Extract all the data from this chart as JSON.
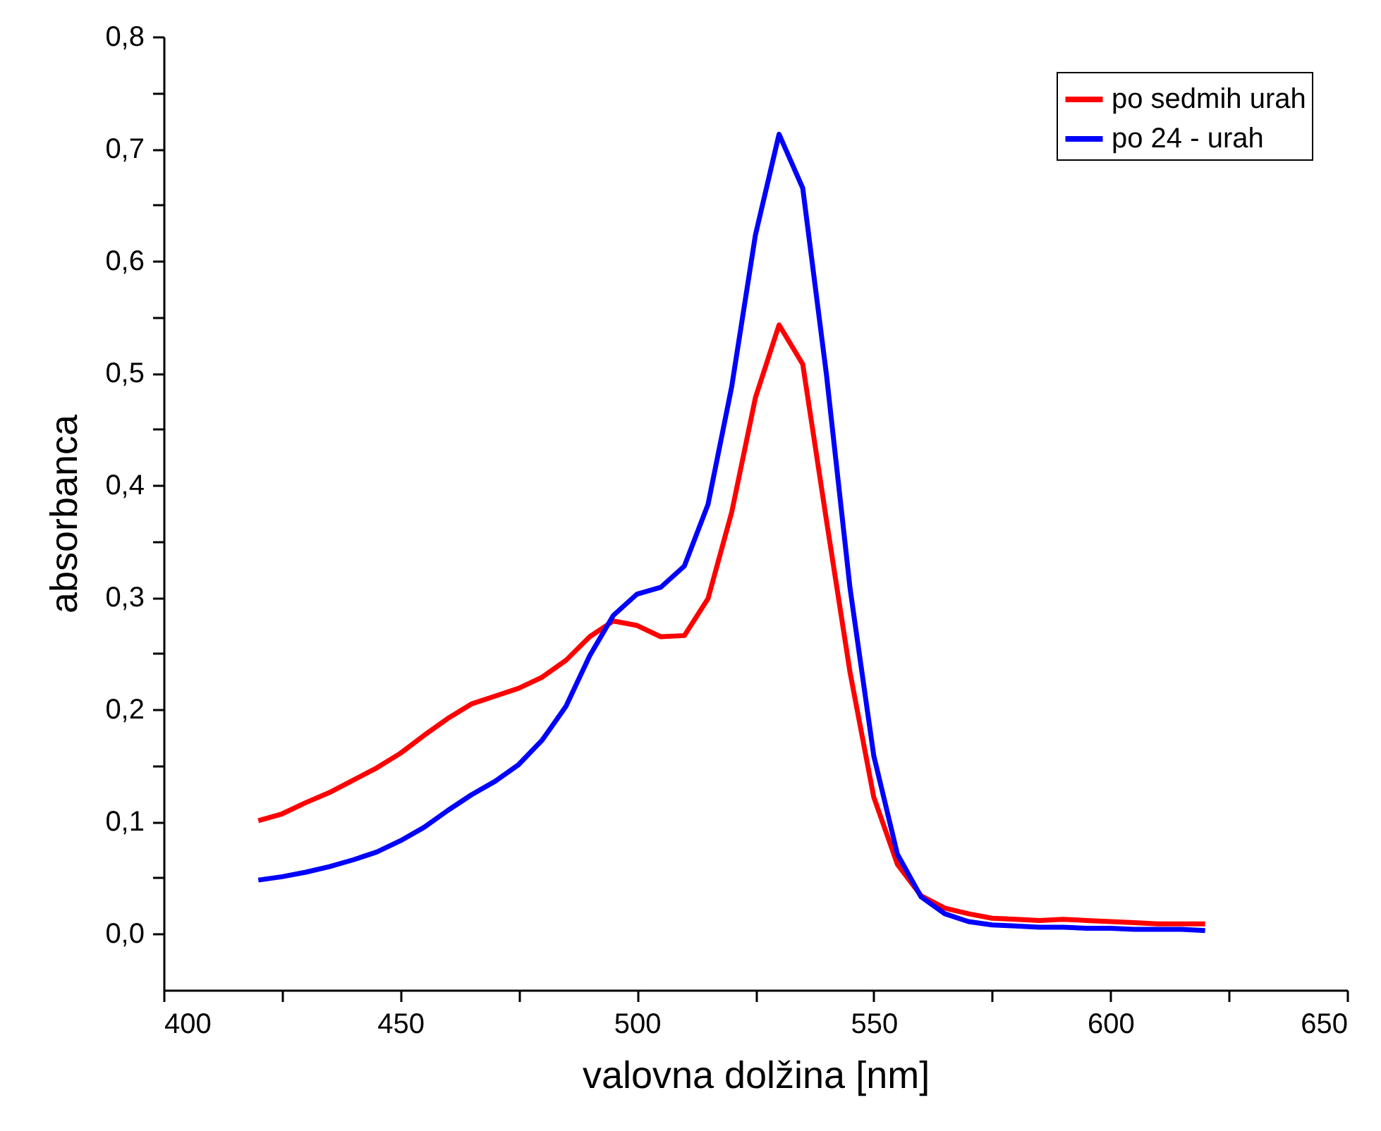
{
  "chart_data": {
    "type": "line",
    "xlabel": "valovna dolžina [nm]",
    "ylabel": "absorbanca",
    "xlim": [
      400,
      650
    ],
    "ylim": [
      -0.05,
      0.8
    ],
    "xticks": [
      400,
      {
        "value": 425,
        "label": null
      },
      450,
      {
        "value": 475,
        "label": null
      },
      500,
      {
        "value": 525,
        "label": null
      },
      550,
      {
        "value": 575,
        "label": null
      },
      600,
      {
        "value": 625,
        "label": null
      },
      650
    ],
    "yticks": [
      {
        "value": 0,
        "label": "0,0"
      },
      {
        "value": 0.05,
        "label": null
      },
      {
        "value": 0.1,
        "label": "0,1"
      },
      {
        "value": 0.15,
        "label": null
      },
      {
        "value": 0.2,
        "label": "0,2"
      },
      {
        "value": 0.25,
        "label": null
      },
      {
        "value": 0.3,
        "label": "0,3"
      },
      {
        "value": 0.35,
        "label": null
      },
      {
        "value": 0.4,
        "label": "0,4"
      },
      {
        "value": 0.45,
        "label": null
      },
      {
        "value": 0.5,
        "label": "0,5"
      },
      {
        "value": 0.55,
        "label": null
      },
      {
        "value": 0.6,
        "label": "0,6"
      },
      {
        "value": 0.65,
        "label": null
      },
      {
        "value": 0.7,
        "label": "0,7"
      },
      {
        "value": 0.75,
        "label": null
      },
      {
        "value": 0.8,
        "label": "0,8"
      }
    ],
    "x": [
      420,
      425,
      430,
      435,
      440,
      445,
      450,
      455,
      460,
      465,
      470,
      475,
      480,
      485,
      490,
      495,
      500,
      505,
      510,
      515,
      520,
      525,
      530,
      535,
      540,
      545,
      550,
      555,
      560,
      565,
      570,
      575,
      580,
      585,
      590,
      595,
      600,
      605,
      610,
      615,
      620
    ],
    "series": [
      {
        "name": "po sedmih urah",
        "color": "#ff0000",
        "values": [
          0.101,
          0.107,
          0.117,
          0.126,
          0.137,
          0.148,
          0.161,
          0.177,
          0.192,
          0.205,
          0.212,
          0.219,
          0.229,
          0.244,
          0.265,
          0.279,
          0.275,
          0.265,
          0.266,
          0.299,
          0.376,
          0.478,
          0.543,
          0.508,
          0.369,
          0.233,
          0.122,
          0.062,
          0.034,
          0.023,
          0.018,
          0.014,
          0.013,
          0.012,
          0.013,
          0.012,
          0.011,
          0.01,
          0.009,
          0.009,
          0.009
        ]
      },
      {
        "name": "po 24 - urah",
        "color": "#0000ff",
        "values": [
          0.048,
          0.051,
          0.055,
          0.06,
          0.066,
          0.073,
          0.083,
          0.095,
          0.11,
          0.124,
          0.136,
          0.151,
          0.173,
          0.203,
          0.248,
          0.284,
          0.303,
          0.309,
          0.328,
          0.383,
          0.488,
          0.623,
          0.713,
          0.665,
          0.499,
          0.308,
          0.159,
          0.071,
          0.033,
          0.018,
          0.011,
          0.008,
          0.007,
          0.006,
          0.006,
          0.005,
          0.005,
          0.004,
          0.004,
          0.004,
          0.003
        ]
      }
    ],
    "legend": "top right",
    "grid": false,
    "marker": "none",
    "line_style": "solid"
  }
}
